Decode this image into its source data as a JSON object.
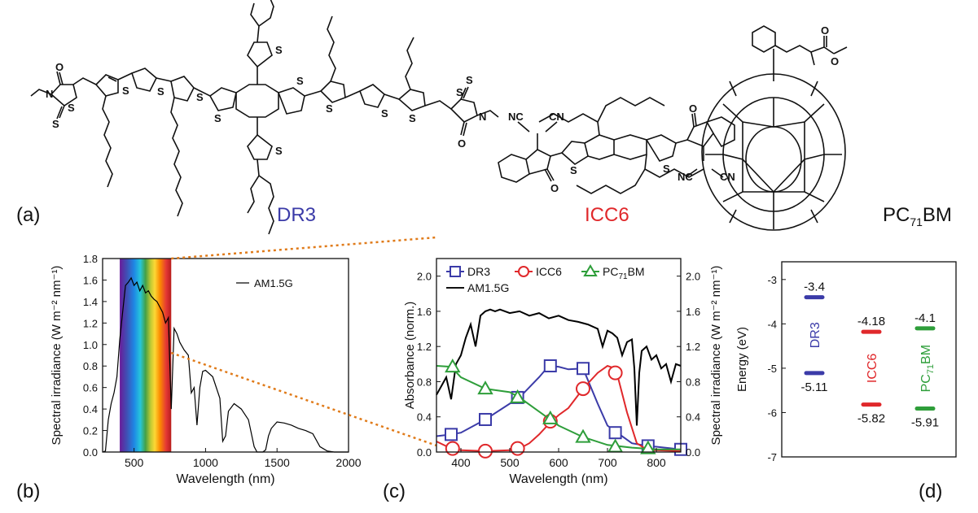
{
  "panel_labels": {
    "a": "(a)",
    "b": "(b)",
    "c": "(c)",
    "d": "(d)"
  },
  "molecules": {
    "dr3": {
      "name": "DR3",
      "color": "#3b3ba8",
      "atoms": {
        "o1": "O",
        "n1": "N",
        "s_ring": "S",
        "s_exo": "S",
        "s_t1": "S",
        "s_t2": "S",
        "s_t3": "S",
        "s_b1": "S",
        "s_b2": "S",
        "s_top": "S",
        "s_bot": "S",
        "s_t4": "S",
        "s_t5": "S",
        "s_t6": "S",
        "s_ring2": "S",
        "s_exo2": "S",
        "n2": "N",
        "o2": "O"
      }
    },
    "icc6": {
      "name": "ICC6",
      "color": "#e0282b",
      "atoms": {
        "nc1": "NC",
        "cn1": "CN",
        "o1": "O",
        "s1": "S",
        "s2": "S",
        "o2": "O",
        "nc2": "NC",
        "cn2": "CN"
      }
    },
    "pc71bm": {
      "name_main": "PC",
      "name_sub": "71",
      "name_tail": "BM",
      "atoms": {
        "o_keto": "O",
        "o_ether": "O"
      }
    }
  },
  "chart_data": [
    {
      "id": "b",
      "type": "line",
      "xlabel": "Wavelength (nm)",
      "ylabel": "Spectral irradiance (W m⁻² nm⁻¹)",
      "xlim": [
        280,
        2000
      ],
      "ylim": [
        0,
        1.8
      ],
      "xticks": [
        500,
        1000,
        1500,
        2000
      ],
      "yticks": [
        0.0,
        0.2,
        0.4,
        0.6,
        0.8,
        1.0,
        1.2,
        1.4,
        1.6,
        1.8
      ],
      "visible_band_nm": [
        400,
        760
      ],
      "legend": "top-right",
      "series": [
        {
          "name": "AM1.5G",
          "color": "#000000",
          "x": [
            280,
            300,
            320,
            340,
            360,
            380,
            400,
            420,
            440,
            460,
            480,
            500,
            520,
            540,
            560,
            580,
            600,
            620,
            640,
            660,
            680,
            700,
            720,
            740,
            760,
            780,
            800,
            820,
            850,
            880,
            900,
            920,
            940,
            960,
            980,
            1000,
            1050,
            1100,
            1120,
            1140,
            1160,
            1200,
            1250,
            1300,
            1340,
            1360,
            1380,
            1400,
            1420,
            1440,
            1460,
            1500,
            1550,
            1600,
            1650,
            1700,
            1750,
            1800,
            1850,
            1900,
            1950,
            2000
          ],
          "y": [
            0,
            0.01,
            0.3,
            0.45,
            0.55,
            0.7,
            1.05,
            1.3,
            1.55,
            1.58,
            1.62,
            1.55,
            1.58,
            1.5,
            1.55,
            1.48,
            1.5,
            1.45,
            1.42,
            1.4,
            1.35,
            1.3,
            1.2,
            1.25,
            0.4,
            1.15,
            1.1,
            1.02,
            0.95,
            0.9,
            0.55,
            0.6,
            0.25,
            0.6,
            0.75,
            0.76,
            0.7,
            0.5,
            0.1,
            0.15,
            0.38,
            0.45,
            0.4,
            0.3,
            0.05,
            0.0,
            0.0,
            0.0,
            0.02,
            0.15,
            0.22,
            0.28,
            0.27,
            0.25,
            0.22,
            0.2,
            0.17,
            0.05,
            0.01,
            0.0,
            0.0,
            0.0
          ]
        }
      ]
    },
    {
      "id": "c",
      "type": "line",
      "xlabel": "Wavelength (nm)",
      "ylabel": "Absorbance (norm.)",
      "ylabel_right": "Spectral irradiance (W m⁻² nm⁻¹)",
      "xlim": [
        350,
        850
      ],
      "ylim": [
        0,
        2.2
      ],
      "ylim_right": [
        0,
        2.2
      ],
      "xticks": [
        400,
        500,
        600,
        700,
        800
      ],
      "yticks": [
        0.0,
        0.4,
        0.8,
        1.2,
        1.6,
        2.0
      ],
      "legend": "top-left",
      "series": [
        {
          "name": "DR3",
          "color": "#3b3ba8",
          "marker": "square",
          "x": [
            350,
            380,
            400,
            450,
            500,
            520,
            560,
            580,
            600,
            620,
            650,
            680,
            700,
            720,
            750,
            780,
            800,
            850
          ],
          "y": [
            0.18,
            0.2,
            0.22,
            0.37,
            0.55,
            0.62,
            0.85,
            0.98,
            0.97,
            0.94,
            0.95,
            0.55,
            0.3,
            0.22,
            0.1,
            0.07,
            0.06,
            0.03
          ],
          "marker_x": [
            380,
            450,
            516,
            583,
            650,
            716,
            783,
            850
          ],
          "marker_y": [
            0.2,
            0.37,
            0.62,
            0.98,
            0.95,
            0.22,
            0.07,
            0.03
          ]
        },
        {
          "name": "ICC6",
          "color": "#e0282b",
          "marker": "circle",
          "x": [
            350,
            380,
            400,
            450,
            500,
            520,
            540,
            560,
            580,
            600,
            620,
            650,
            680,
            700,
            710,
            720,
            740,
            760,
            780,
            800,
            850
          ],
          "y": [
            0.12,
            0.04,
            0.02,
            0.01,
            0.02,
            0.04,
            0.1,
            0.2,
            0.32,
            0.42,
            0.5,
            0.72,
            0.9,
            0.98,
            0.96,
            0.88,
            0.45,
            0.1,
            0.03,
            0.02,
            0.01
          ],
          "marker_x": [
            383,
            450,
            516,
            583,
            650,
            716
          ],
          "marker_y": [
            0.04,
            0.01,
            0.04,
            0.35,
            0.72,
            0.9
          ]
        },
        {
          "name": "PC71BM",
          "label_main": "PC",
          "label_sub": "71",
          "label_tail": "BM",
          "color": "#2e9e3a",
          "marker": "triangle",
          "x": [
            350,
            380,
            400,
            450,
            500,
            520,
            550,
            580,
            600,
            650,
            700,
            750,
            800,
            850
          ],
          "y": [
            0.98,
            0.97,
            0.85,
            0.72,
            0.68,
            0.62,
            0.5,
            0.38,
            0.3,
            0.17,
            0.08,
            0.05,
            0.03,
            0.03
          ],
          "marker_x": [
            383,
            450,
            516,
            583,
            650,
            716,
            783
          ],
          "marker_y": [
            0.97,
            0.72,
            0.62,
            0.38,
            0.17,
            0.06,
            0.04
          ]
        },
        {
          "name": "AM1.5G",
          "color": "#000000",
          "axis": "right",
          "x": [
            350,
            360,
            370,
            380,
            390,
            400,
            410,
            420,
            430,
            440,
            450,
            460,
            470,
            480,
            500,
            520,
            540,
            560,
            580,
            600,
            620,
            640,
            660,
            680,
            690,
            700,
            710,
            720,
            730,
            740,
            750,
            755,
            760,
            765,
            770,
            780,
            790,
            800,
            810,
            820,
            830,
            840,
            850
          ],
          "y": [
            0.65,
            0.75,
            0.85,
            0.6,
            1.0,
            1.1,
            1.3,
            1.45,
            1.2,
            1.55,
            1.6,
            1.62,
            1.6,
            1.62,
            1.58,
            1.6,
            1.55,
            1.58,
            1.52,
            1.55,
            1.5,
            1.48,
            1.45,
            1.4,
            1.2,
            1.38,
            1.35,
            1.3,
            1.1,
            1.25,
            1.28,
            0.95,
            0.3,
            0.9,
            1.15,
            1.2,
            1.05,
            1.1,
            0.95,
            1.0,
            0.8,
            1.0,
            0.98
          ]
        }
      ]
    },
    {
      "id": "d",
      "type": "energy_levels",
      "ylabel": "Energy (eV)",
      "ylim": [
        -7,
        -2.6
      ],
      "yticks": [
        -7,
        -6,
        -5,
        -4,
        -3
      ],
      "levels": [
        {
          "name": "DR3",
          "color": "#3b3ba8",
          "lumo": -3.4,
          "homo": -5.11,
          "lumo_label": "-3.4",
          "homo_label": "-5.11"
        },
        {
          "name": "ICC6",
          "color": "#e0282b",
          "lumo": -4.18,
          "homo": -5.82,
          "lumo_label": "-4.18",
          "homo_label": "-5.82"
        },
        {
          "name": "PC71BM",
          "label_main": "PC",
          "label_sub": "71",
          "label_tail": "BM",
          "color": "#2e9e3a",
          "lumo": -4.1,
          "homo": -5.91,
          "lumo_label": "-4.1",
          "homo_label": "-5.91"
        }
      ]
    }
  ]
}
